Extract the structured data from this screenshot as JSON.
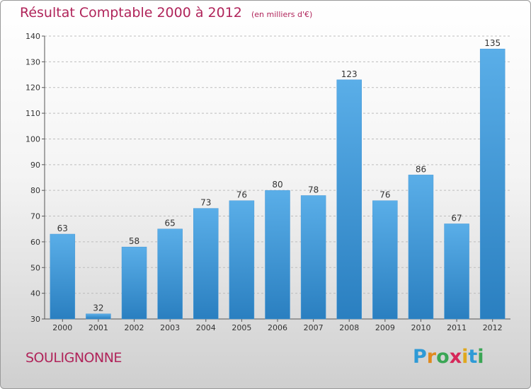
{
  "header": {
    "title": "Résultat Comptable 2000 à 2012",
    "subtitle": "(en milliers d'€)"
  },
  "footer": {
    "commune": "SOULIGNONNE",
    "logo_letters": [
      "P",
      "r",
      "o",
      "x",
      "i",
      "t",
      "i"
    ],
    "logo_colors": [
      "#2e9ad6",
      "#e08a1e",
      "#3aa655",
      "#d6285a",
      "#e0a81e",
      "#2e9ad6",
      "#3aa655"
    ]
  },
  "chart_data": {
    "type": "bar",
    "categories": [
      "2000",
      "2001",
      "2002",
      "2003",
      "2004",
      "2005",
      "2006",
      "2007",
      "2008",
      "2009",
      "2010",
      "2011",
      "2012"
    ],
    "values": [
      63,
      32,
      58,
      65,
      73,
      76,
      80,
      78,
      123,
      76,
      86,
      67,
      135
    ],
    "labels": [
      "63",
      "32",
      "58",
      "65",
      "73",
      "76",
      "80",
      "78",
      "123",
      "76",
      "86",
      "67",
      "135"
    ],
    "yticks": [
      "30",
      "40",
      "50",
      "60",
      "70",
      "80",
      "90",
      "100",
      "110",
      "120",
      "130",
      "140"
    ],
    "ylim": [
      30,
      140
    ],
    "grid": "horizontal-dashed",
    "bar_color_top": "#5aaee8",
    "bar_color_bottom": "#2a7fc0"
  }
}
